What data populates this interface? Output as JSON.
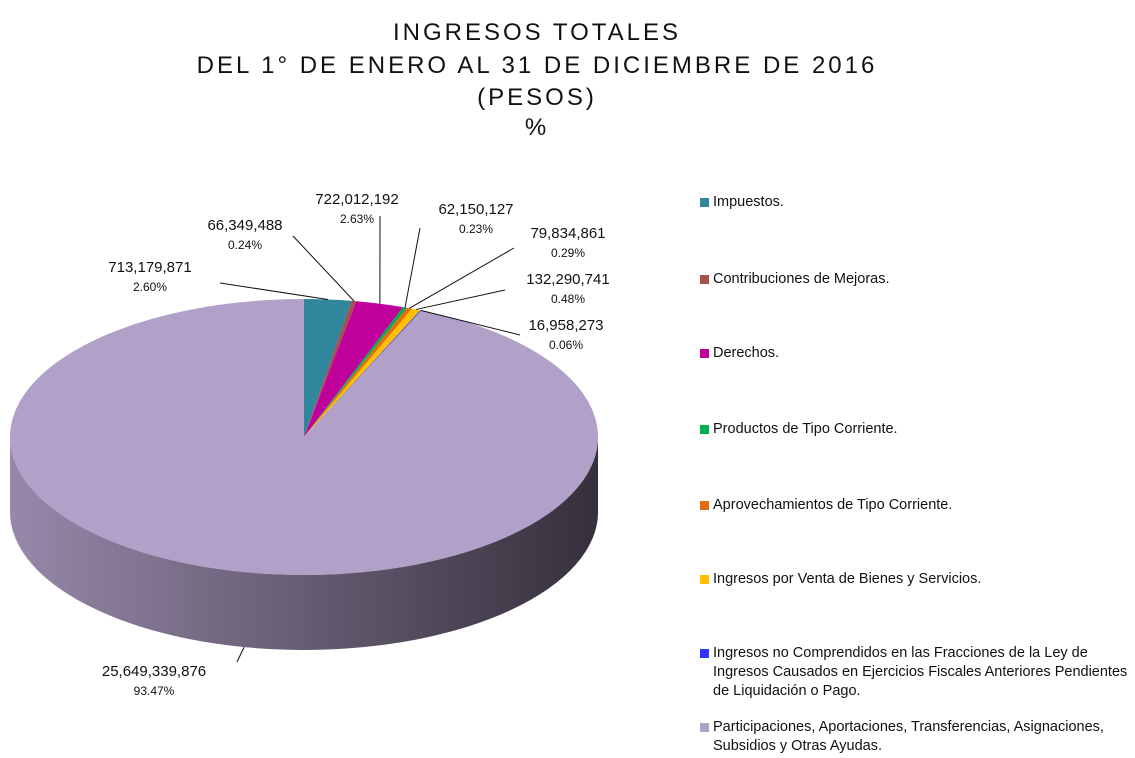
{
  "chart_data": {
    "type": "pie3d",
    "title_lines": [
      "INGRESOS TOTALES",
      "DEL 1° DE ENERO AL 31 DE DICIEMBRE DE 2016",
      "(PESOS)",
      "%"
    ],
    "categories": [
      "Impuestos.",
      "Contribuciones de Mejoras.",
      "Derechos.",
      "Productos de Tipo Corriente.",
      "Aprovechamientos de Tipo Corriente.",
      "Ingresos por Venta de Bienes y Servicios.",
      "Ingresos no Comprendidos en las Fracciones de la Ley de Ingresos Causados en Ejercicios Fiscales Anteriores Pendientes de Liquidación o Pago.",
      "Participaciones, Aportaciones, Transferencias, Asignaciones, Subsidios y Otras Ayudas."
    ],
    "values": [
      713179871,
      66349488,
      722012192,
      62150127,
      79834861,
      132290741,
      16958273,
      25649339876
    ],
    "value_labels": [
      "713,179,871",
      "66,349,488",
      "722,012,192",
      "62,150,127",
      "79,834,861",
      "132,290,741",
      "16,958,273",
      "25,649,339,876"
    ],
    "percents": [
      2.6,
      0.24,
      2.63,
      0.23,
      0.29,
      0.48,
      0.06,
      93.47
    ],
    "percent_labels": [
      "2.60%",
      "0.24%",
      "2.63%",
      "0.23%",
      "0.29%",
      "0.48%",
      "0.06%",
      "93.47%"
    ],
    "colors": [
      "#31859c",
      "#a5504b",
      "#c0009a",
      "#00b050",
      "#e46c0a",
      "#ffc000",
      "#3333ff",
      "#b1a0c7"
    ],
    "legend": "right"
  }
}
